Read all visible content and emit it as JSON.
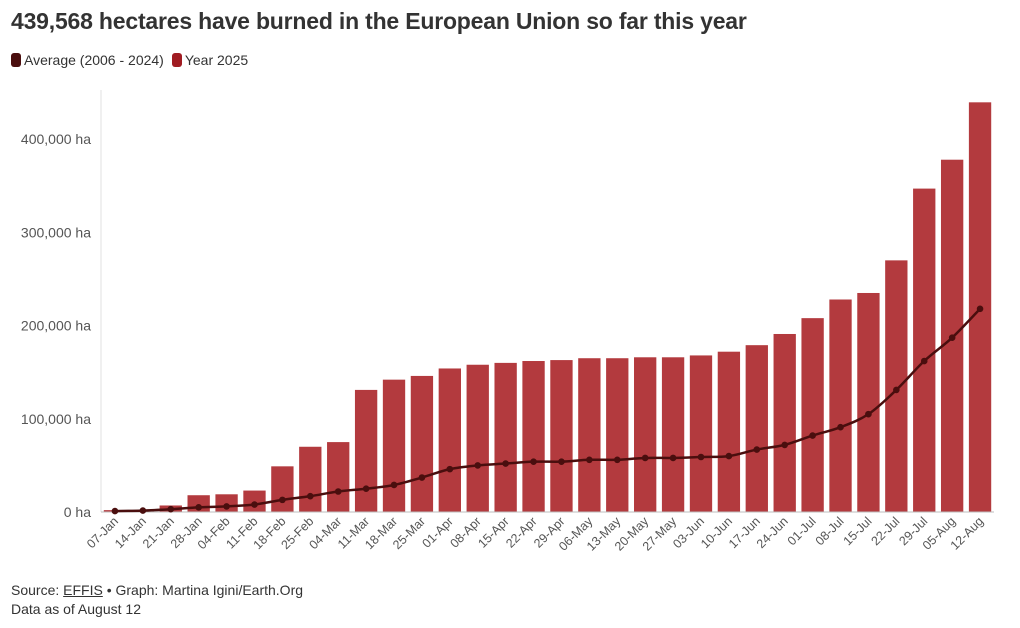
{
  "header": {
    "title": "439,568 hectares have burned in the European Union so far this year"
  },
  "legend": {
    "items": [
      {
        "label": "Average (2006 - 2024)",
        "color": "#4a0e0e"
      },
      {
        "label": "Year 2025",
        "color": "#a01c22"
      }
    ]
  },
  "footer": {
    "source_prefix": "Source:",
    "source_link": "EFFIS",
    "credit": "• Graph: Martina Igini/Earth.Org",
    "note": "Data as of August 12"
  },
  "chart_data": {
    "type": "bar",
    "categories": [
      "07-Jan",
      "14-Jan",
      "21-Jan",
      "28-Jan",
      "04-Feb",
      "11-Feb",
      "18-Feb",
      "25-Feb",
      "04-Mar",
      "11-Mar",
      "18-Mar",
      "25-Mar",
      "01-Apr",
      "08-Apr",
      "15-Apr",
      "22-Apr",
      "29-Apr",
      "06-May",
      "13-May",
      "20-May",
      "27-May",
      "03-Jun",
      "10-Jun",
      "17-Jun",
      "24-Jun",
      "01-Jul",
      "08-Jul",
      "15-Jul",
      "22-Jul",
      "29-Jul",
      "05-Aug",
      "12-Aug"
    ],
    "y_ticks": [
      0,
      100000,
      200000,
      300000,
      400000
    ],
    "y_tick_labels": [
      "0 ha",
      "100,000 ha",
      "200,000 ha",
      "300,000 ha",
      "400,000 ha"
    ],
    "ylim": [
      0,
      450000
    ],
    "series": [
      {
        "name": "Year 2025",
        "type": "bar",
        "color": "#b33a3e",
        "values": [
          2000,
          1000,
          7000,
          18000,
          19000,
          23000,
          49000,
          70000,
          75000,
          131000,
          142000,
          146000,
          154000,
          158000,
          160000,
          162000,
          163000,
          165000,
          165000,
          166000,
          166000,
          168000,
          172000,
          179000,
          191000,
          208000,
          228000,
          235000,
          270000,
          347000,
          378000,
          439568
        ]
      },
      {
        "name": "Average (2006 - 2024)",
        "type": "line",
        "color": "#4a0e0e",
        "values": [
          1000,
          1500,
          3000,
          5000,
          6000,
          8000,
          13000,
          17000,
          22000,
          25000,
          29000,
          37000,
          46000,
          50000,
          52000,
          54000,
          54000,
          56000,
          56000,
          58000,
          58000,
          59000,
          60000,
          67000,
          72000,
          82000,
          91000,
          105000,
          131000,
          162000,
          187000,
          218000
        ]
      }
    ]
  }
}
